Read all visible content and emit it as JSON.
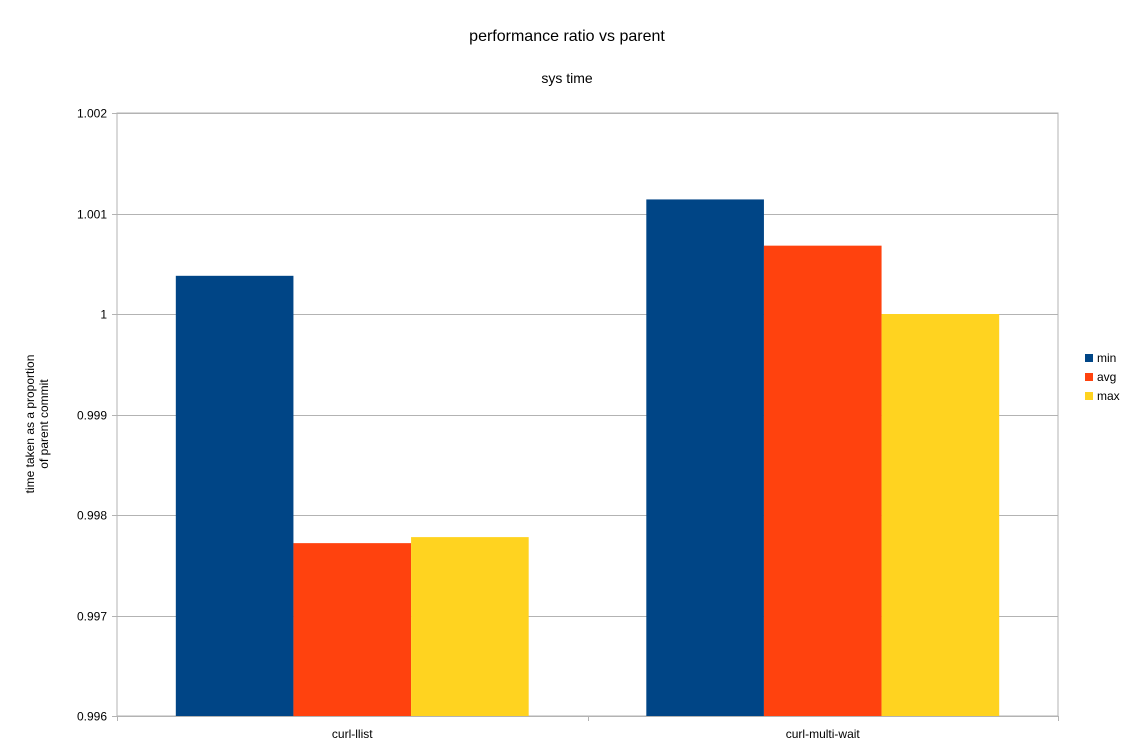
{
  "chart_data": {
    "type": "bar",
    "title": "performance ratio vs parent",
    "subtitle": "sys time",
    "xlabel": "",
    "ylabel_lines": [
      "time taken as a proportion",
      "of parent commit"
    ],
    "categories": [
      "curl-llist",
      "curl-multi-wait"
    ],
    "series": [
      {
        "name": "min",
        "color": "#004586",
        "values": [
          1.00038,
          1.00114
        ]
      },
      {
        "name": "avg",
        "color": "#ff420e",
        "values": [
          0.99772,
          1.00068
        ]
      },
      {
        "name": "max",
        "color": "#ffd320",
        "values": [
          0.99778,
          1.0
        ]
      }
    ],
    "ylim": [
      0.996,
      1.002
    ],
    "yticks": [
      {
        "value": 0.996,
        "label": "0.996"
      },
      {
        "value": 0.997,
        "label": "0.997"
      },
      {
        "value": 0.998,
        "label": "0.998"
      },
      {
        "value": 0.999,
        "label": "0.999"
      },
      {
        "value": 1.0,
        "label": "1"
      },
      {
        "value": 1.001,
        "label": "1.001"
      },
      {
        "value": 1.002,
        "label": "1.002"
      }
    ],
    "grid": true,
    "legend_position": "right"
  }
}
